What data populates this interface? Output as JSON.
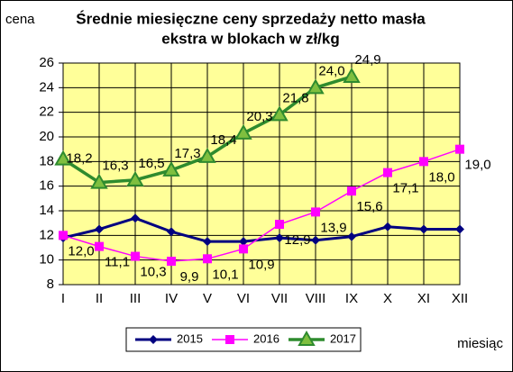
{
  "chart_data": {
    "type": "line",
    "title": [
      "Średnie miesięczne ceny sprzedaży netto masła",
      "ekstra w blokach w zł/kg"
    ],
    "y_label": "cena",
    "x_label": "miesiąc",
    "categories": [
      "I",
      "II",
      "III",
      "IV",
      "V",
      "VI",
      "VII",
      "VIII",
      "IX",
      "X",
      "XI",
      "XII"
    ],
    "ylim": [
      8,
      26
    ],
    "yticks": [
      8,
      10,
      12,
      14,
      16,
      18,
      20,
      22,
      24,
      26
    ],
    "grid": true,
    "background": "#ffff99",
    "legend": "bottom",
    "series": [
      {
        "name": "2015",
        "color": "#000080",
        "marker": "diamond",
        "values": [
          11.8,
          12.5,
          13.4,
          12.3,
          11.5,
          11.5,
          11.8,
          11.6,
          11.9,
          12.7,
          12.5,
          12.5
        ]
      },
      {
        "name": "2016",
        "color": "#ff00ff",
        "marker": "square",
        "values": [
          12.0,
          11.1,
          10.3,
          9.9,
          10.1,
          10.9,
          12.9,
          13.9,
          15.6,
          17.1,
          18.0,
          19.0
        ],
        "value_labels": [
          "12,0",
          "11,1",
          "10,3",
          "9,9",
          "10,1",
          "10,9",
          "12,9",
          "13,9",
          "15,6",
          "17,1",
          "18,0",
          "19,0"
        ]
      },
      {
        "name": "2017",
        "color": "#2e8b2e",
        "marker": "triangle",
        "values": [
          18.2,
          16.3,
          16.5,
          17.3,
          18.4,
          20.3,
          21.8,
          24.0,
          24.9,
          null,
          null,
          null
        ],
        "value_labels": [
          "18,2",
          "16,3",
          "16,5",
          "17,3",
          "18,4",
          "20,3",
          "21,8",
          "24,0",
          "24,9",
          null,
          null,
          null
        ]
      }
    ]
  }
}
